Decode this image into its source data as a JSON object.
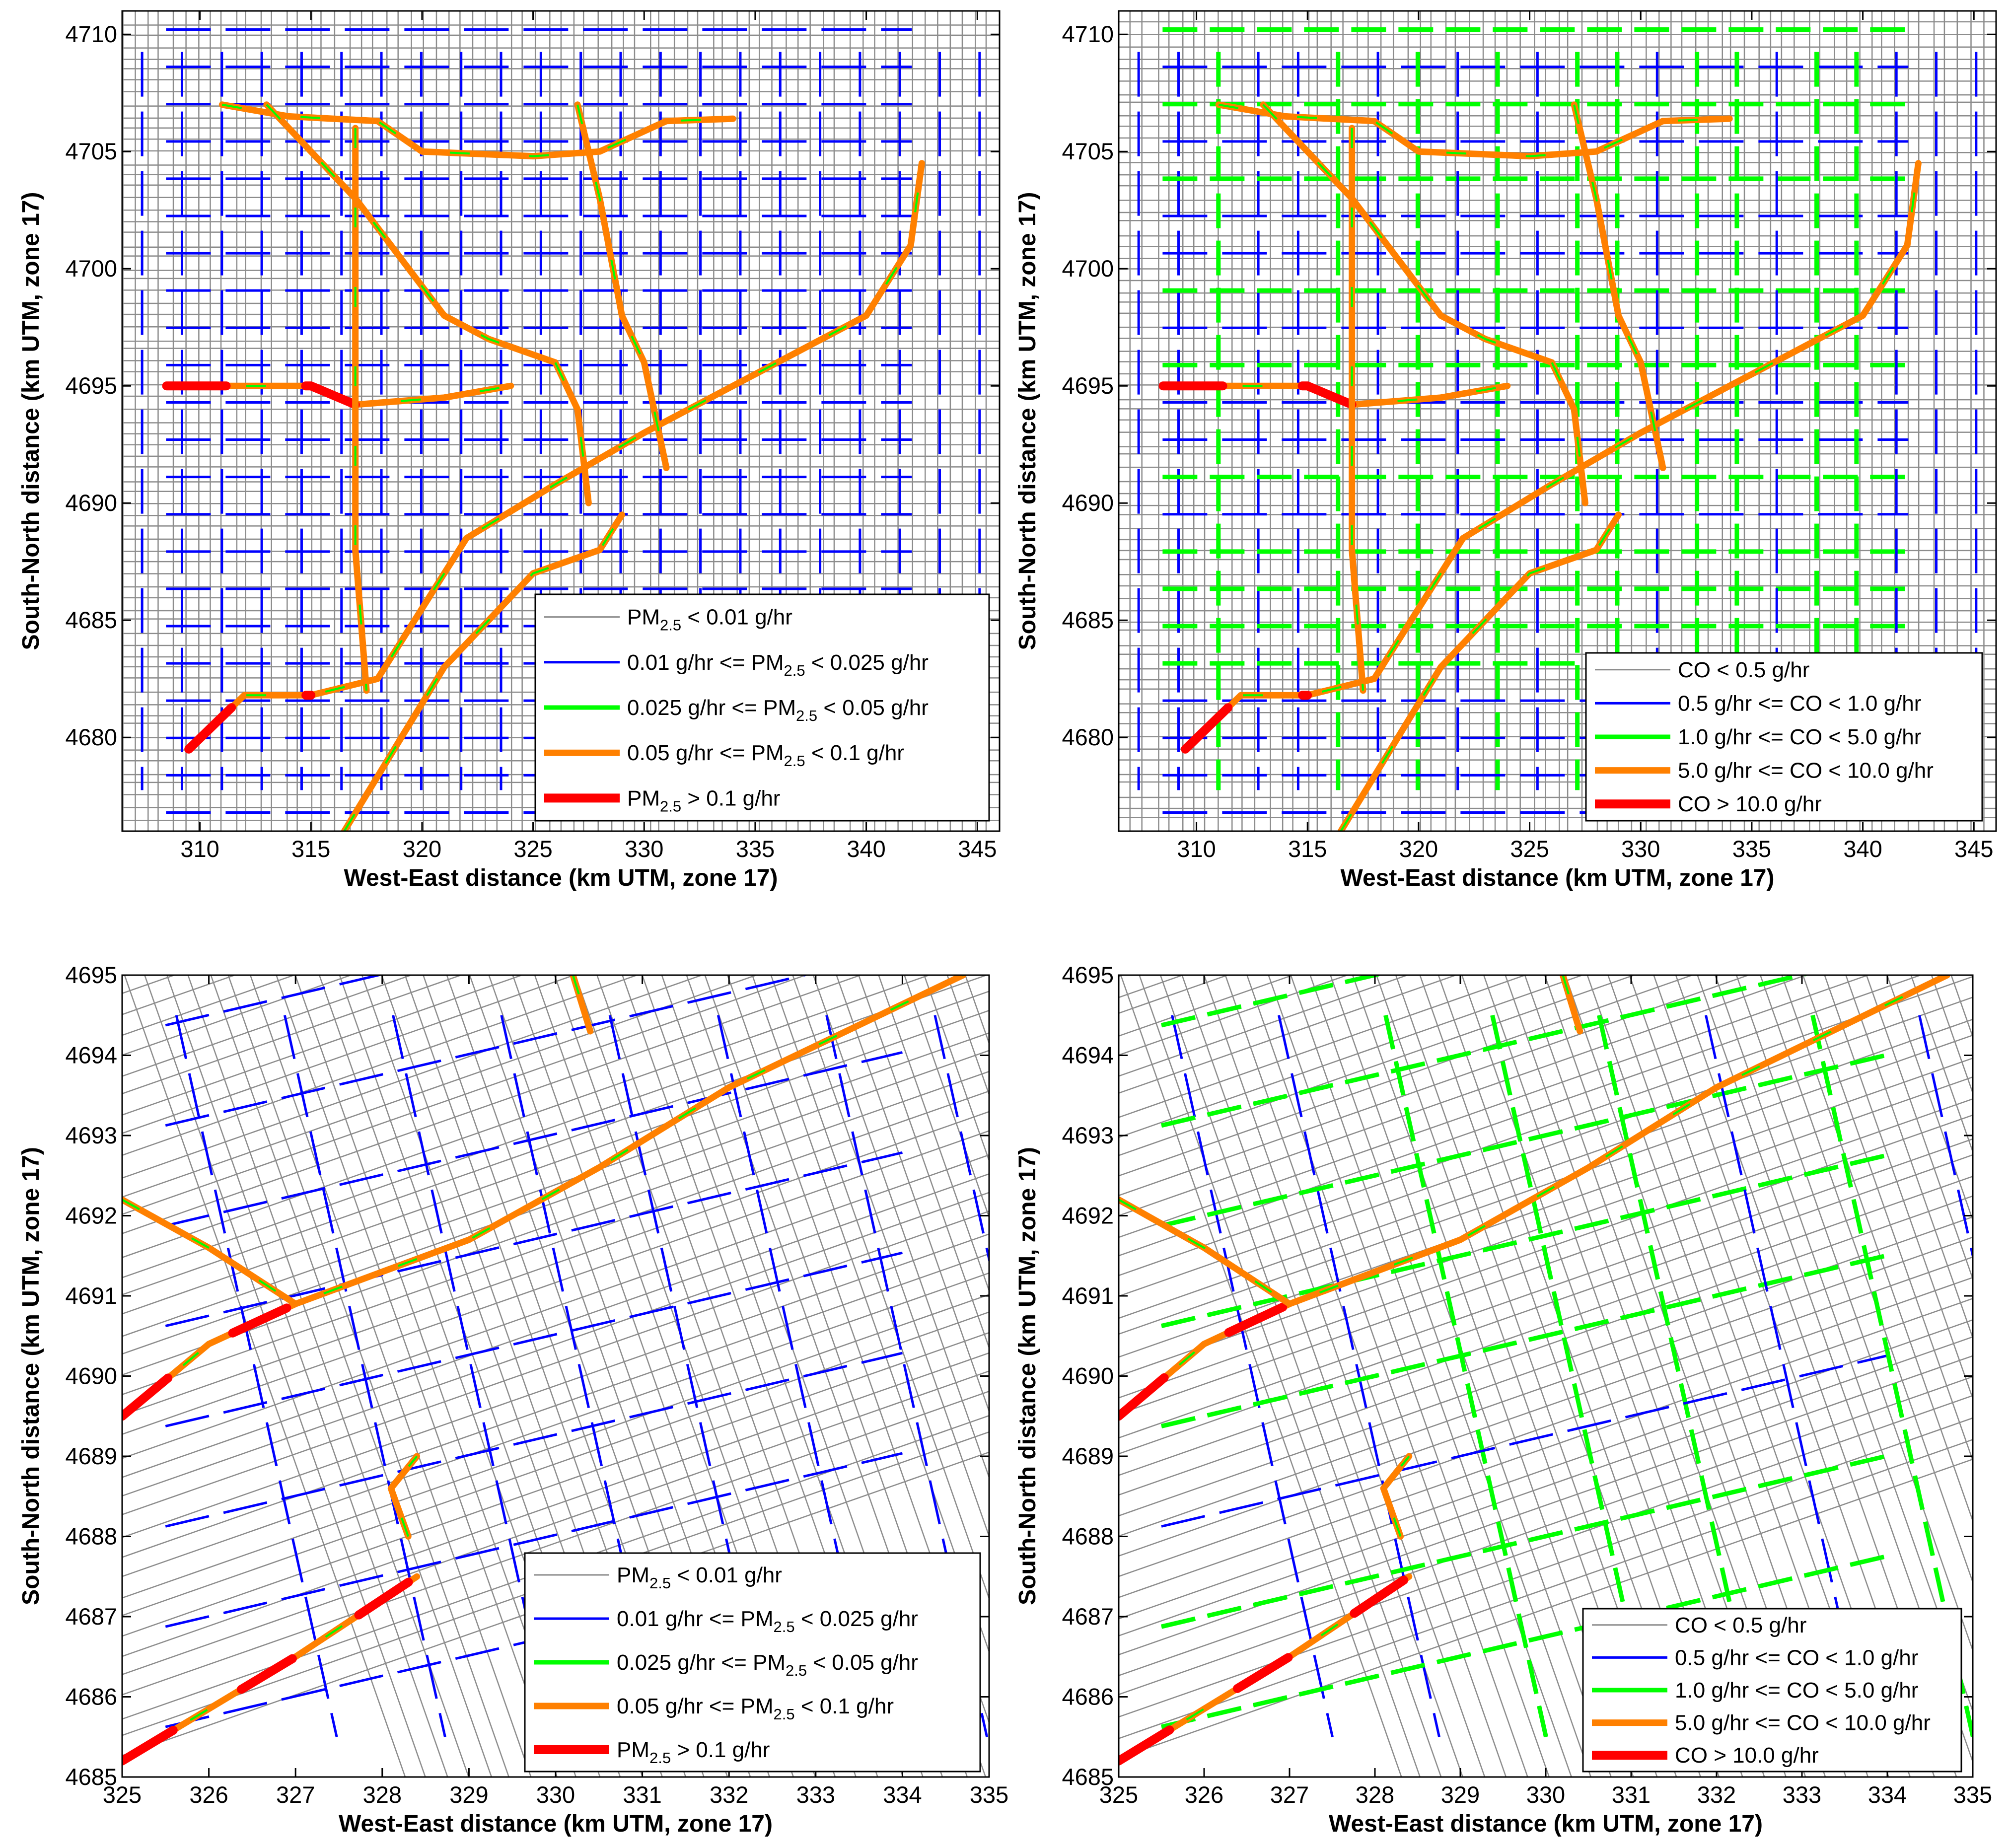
{
  "chart_data": [
    {
      "type": "map",
      "pollutant": "PM2.5",
      "xlabel": "West-East distance (km UTM, zone 17)",
      "ylabel": "South-North distance (km UTM, zone 17)",
      "xlim": [
        306.5,
        346
      ],
      "ylim": [
        4676,
        4711
      ],
      "xticks": [
        "310",
        "315",
        "320",
        "325",
        "330",
        "335",
        "340",
        "345"
      ],
      "yticks": [
        "4680",
        "4685",
        "4690",
        "4695",
        "4700",
        "4705",
        "4710"
      ],
      "legend_location": "bottom-right",
      "legend": [
        {
          "pre": "PM",
          "sub": "2.5",
          "post": " < 0.01 g/hr",
          "color": "#8c8c8c",
          "width": 3
        },
        {
          "pre": "0.01 g/hr <= PM",
          "sub": "2.5",
          "post": " < 0.025 g/hr",
          "color": "#0000ff",
          "width": 5
        },
        {
          "pre": "0.025 g/hr <= PM",
          "sub": "2.5",
          "post": " < 0.05 g/hr",
          "color": "#00ff00",
          "width": 9
        },
        {
          "pre": "0.05 g/hr <= PM",
          "sub": "2.5",
          "post": " < 0.1 g/hr",
          "color": "#ff8000",
          "width": 13
        },
        {
          "pre": "PM",
          "sub": "2.5",
          "post": " > 0.1 g/hr",
          "color": "#ff0000",
          "width": 18
        }
      ]
    },
    {
      "type": "map",
      "pollutant": "CO",
      "xlabel": "West-East distance (km UTM, zone 17)",
      "ylabel": "South-North distance (km UTM, zone 17)",
      "xlim": [
        306.5,
        346
      ],
      "ylim": [
        4676,
        4711
      ],
      "xticks": [
        "310",
        "315",
        "320",
        "325",
        "330",
        "335",
        "340",
        "345"
      ],
      "yticks": [
        "4680",
        "4685",
        "4690",
        "4695",
        "4700",
        "4705",
        "4710"
      ],
      "legend_location": "bottom-right",
      "legend": [
        {
          "pre": "CO < 0.5 g/hr",
          "sub": "",
          "post": "",
          "color": "#8c8c8c",
          "width": 3
        },
        {
          "pre": "0.5 g/hr <= CO < 1.0 g/hr",
          "sub": "",
          "post": "",
          "color": "#0000ff",
          "width": 5
        },
        {
          "pre": "1.0 g/hr <= CO < 5.0 g/hr",
          "sub": "",
          "post": "",
          "color": "#00ff00",
          "width": 9
        },
        {
          "pre": "5.0 g/hr <= CO < 10.0 g/hr",
          "sub": "",
          "post": "",
          "color": "#ff8000",
          "width": 13
        },
        {
          "pre": "CO > 10.0 g/hr",
          "sub": "",
          "post": "",
          "color": "#ff0000",
          "width": 18
        }
      ]
    },
    {
      "type": "map",
      "pollutant": "PM2.5",
      "xlabel": "West-East distance (km UTM, zone 17)",
      "ylabel": "South-North distance (km UTM, zone 17)",
      "xlim": [
        325,
        335
      ],
      "ylim": [
        4685,
        4695
      ],
      "xticks": [
        "325",
        "326",
        "327",
        "328",
        "329",
        "330",
        "331",
        "332",
        "333",
        "334",
        "335"
      ],
      "yticks": [
        "4685",
        "4686",
        "4687",
        "4688",
        "4689",
        "4690",
        "4691",
        "4692",
        "4693",
        "4694",
        "4695"
      ],
      "legend_location": "bottom-right",
      "legend": [
        {
          "pre": "PM",
          "sub": "2.5",
          "post": " < 0.01 g/hr",
          "color": "#8c8c8c",
          "width": 3
        },
        {
          "pre": "0.01 g/hr <= PM",
          "sub": "2.5",
          "post": " < 0.025 g/hr",
          "color": "#0000ff",
          "width": 5
        },
        {
          "pre": "0.025 g/hr <= PM",
          "sub": "2.5",
          "post": " < 0.05 g/hr",
          "color": "#00ff00",
          "width": 9
        },
        {
          "pre": "0.05 g/hr <= PM",
          "sub": "2.5",
          "post": " < 0.1 g/hr",
          "color": "#ff8000",
          "width": 13
        },
        {
          "pre": "PM",
          "sub": "2.5",
          "post": " > 0.1 g/hr",
          "color": "#ff0000",
          "width": 18
        }
      ]
    },
    {
      "type": "map",
      "pollutant": "CO",
      "xlabel": "West-East distance (km UTM, zone 17)",
      "ylabel": "South-North distance (km UTM, zone 17)",
      "xlim": [
        325,
        335
      ],
      "ylim": [
        4685,
        4695
      ],
      "xticks": [
        "325",
        "326",
        "327",
        "328",
        "329",
        "330",
        "331",
        "332",
        "333",
        "334",
        "335"
      ],
      "yticks": [
        "4685",
        "4686",
        "4687",
        "4688",
        "4689",
        "4690",
        "4691",
        "4692",
        "4693",
        "4694",
        "4695"
      ],
      "legend_location": "bottom-right",
      "legend": [
        {
          "pre": "CO < 0.5 g/hr",
          "sub": "",
          "post": "",
          "color": "#8c8c8c",
          "width": 3
        },
        {
          "pre": "0.5 g/hr <= CO < 1.0 g/hr",
          "sub": "",
          "post": "",
          "color": "#0000ff",
          "width": 5
        },
        {
          "pre": "1.0 g/hr <= CO < 5.0 g/hr",
          "sub": "",
          "post": "",
          "color": "#00ff00",
          "width": 9
        },
        {
          "pre": "5.0 g/hr <= CO < 10.0 g/hr",
          "sub": "",
          "post": "",
          "color": "#ff8000",
          "width": 13
        },
        {
          "pre": "CO > 10.0 g/hr",
          "sub": "",
          "post": "",
          "color": "#ff0000",
          "width": 18
        }
      ]
    }
  ]
}
